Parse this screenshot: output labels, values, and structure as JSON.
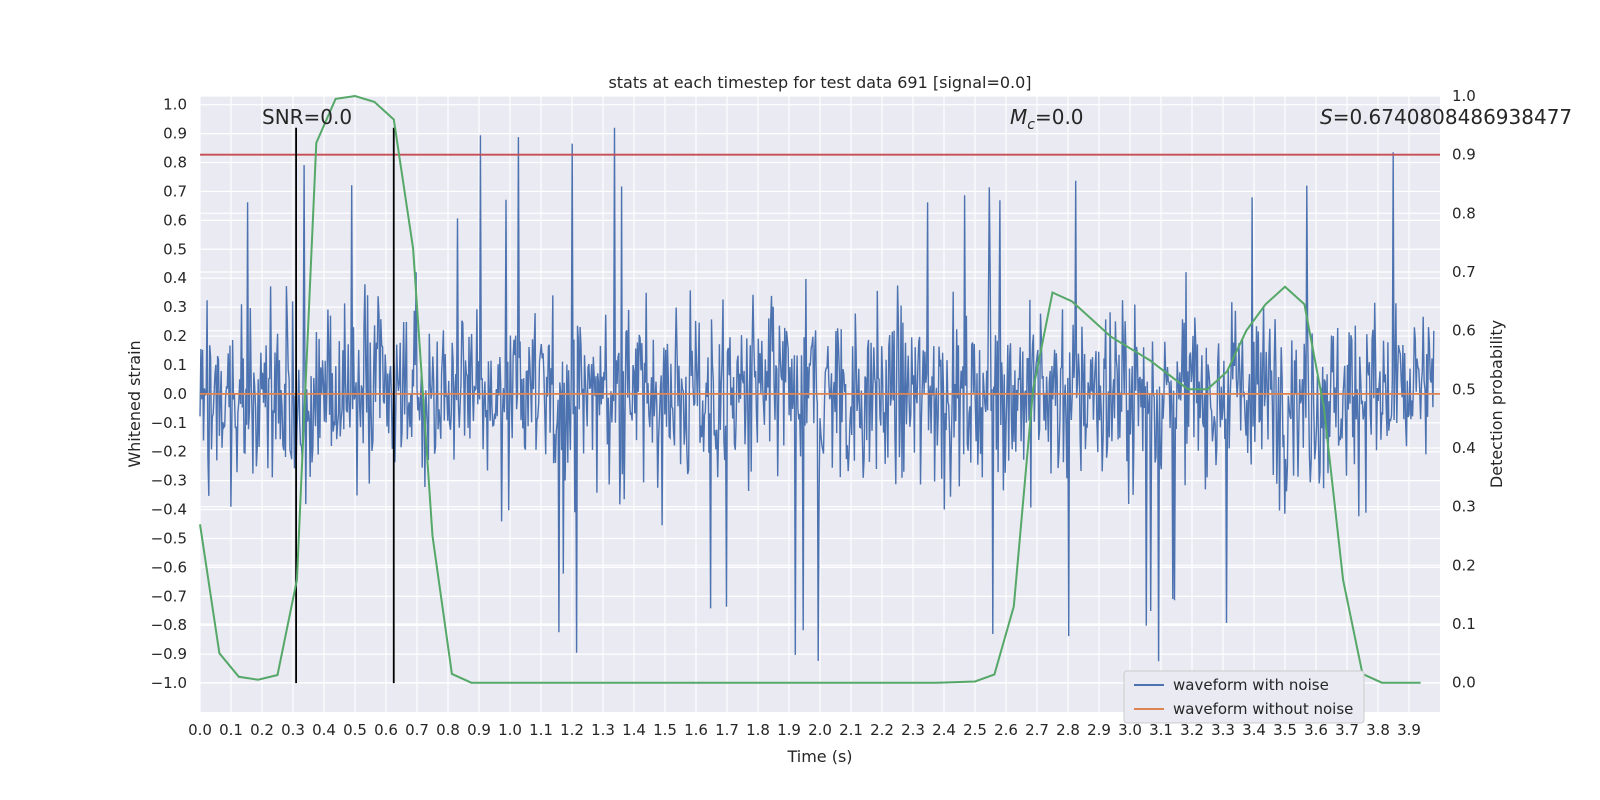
{
  "chart_data": {
    "type": "line",
    "title": "stats at each timestep for test data 691 [signal=0.0]",
    "xlabel": "Time (s)",
    "ylabel": "Whitened strain",
    "y2label": "Detection probability",
    "xlim": [
      0.0,
      4.0
    ],
    "ylim": [
      -1.1,
      1.03
    ],
    "y2lim": [
      -0.05,
      1.0
    ],
    "x_ticks": [
      "0.0",
      "0.1",
      "0.2",
      "0.3",
      "0.4",
      "0.5",
      "0.6",
      "0.7",
      "0.8",
      "0.9",
      "1.0",
      "1.1",
      "1.2",
      "1.3",
      "1.4",
      "1.5",
      "1.6",
      "1.7",
      "1.8",
      "1.9",
      "2.0",
      "2.1",
      "2.2",
      "2.3",
      "2.4",
      "2.5",
      "2.6",
      "2.7",
      "2.8",
      "2.9",
      "3.0",
      "3.1",
      "3.2",
      "3.3",
      "3.4",
      "3.5",
      "3.6",
      "3.7",
      "3.8",
      "3.9"
    ],
    "y_ticks": [
      "1.0",
      "0.9",
      "0.8",
      "0.7",
      "0.6",
      "0.5",
      "0.4",
      "0.3",
      "0.2",
      "0.1",
      "0.0",
      "−0.1",
      "−0.2",
      "−0.3",
      "−0.4",
      "−0.5",
      "−0.6",
      "−0.7",
      "−0.8",
      "−0.9",
      "−1.0"
    ],
    "y2_ticks": [
      "0.0",
      "0.1",
      "0.2",
      "0.3",
      "0.4",
      "0.5",
      "0.6",
      "0.7",
      "0.8",
      "0.9",
      "1.0"
    ],
    "annotations": {
      "snr": "SNR=0.0",
      "mc": "M",
      "mc_sub": "c",
      "mc_value": "=0.0",
      "s": "S",
      "s_value": "=0.6740808486938477"
    },
    "threshold": 0.9,
    "waveform_without_noise": 0.0,
    "markers_x": [
      0.31,
      0.625
    ],
    "noise_waveform": {
      "amplitude_typical": 0.4,
      "peak_max": 0.93,
      "peak_min": -1.0,
      "samples": 1400
    },
    "series": [
      {
        "name": "detection_probability",
        "color": "#55a868",
        "x": [
          0.0,
          0.0625,
          0.125,
          0.1875,
          0.25,
          0.3125,
          0.375,
          0.4375,
          0.5,
          0.5625,
          0.625,
          0.6875,
          0.75,
          0.8125,
          0.875,
          0.9375,
          2.375,
          2.5,
          2.5625,
          2.625,
          2.6875,
          2.75,
          2.8125,
          2.875,
          2.9375,
          3.0,
          3.0625,
          3.125,
          3.1875,
          3.25,
          3.3125,
          3.375,
          3.4375,
          3.5,
          3.5625,
          3.625,
          3.6875,
          3.75,
          3.8125,
          3.875,
          3.9375
        ],
        "y": [
          0.27,
          0.05,
          0.01,
          0.005,
          0.013,
          0.175,
          0.92,
          0.995,
          1.0,
          0.99,
          0.96,
          0.74,
          0.25,
          0.015,
          0.0,
          0.0,
          0.0,
          0.002,
          0.014,
          0.13,
          0.5,
          0.665,
          0.65,
          0.62,
          0.59,
          0.57,
          0.55,
          0.525,
          0.5,
          0.5,
          0.53,
          0.6,
          0.645,
          0.675,
          0.645,
          0.47,
          0.175,
          0.015,
          0.0,
          0.0,
          0.0
        ]
      }
    ],
    "legend": [
      "waveform with noise",
      "waveform without noise"
    ],
    "colors": {
      "noise": "#4c72b0",
      "clean": "#dd8452",
      "prob": "#55a868",
      "threshold": "#c44e52",
      "marker": "#000000",
      "axes_bg": "#eaeaf2",
      "grid": "#ffffff"
    }
  }
}
